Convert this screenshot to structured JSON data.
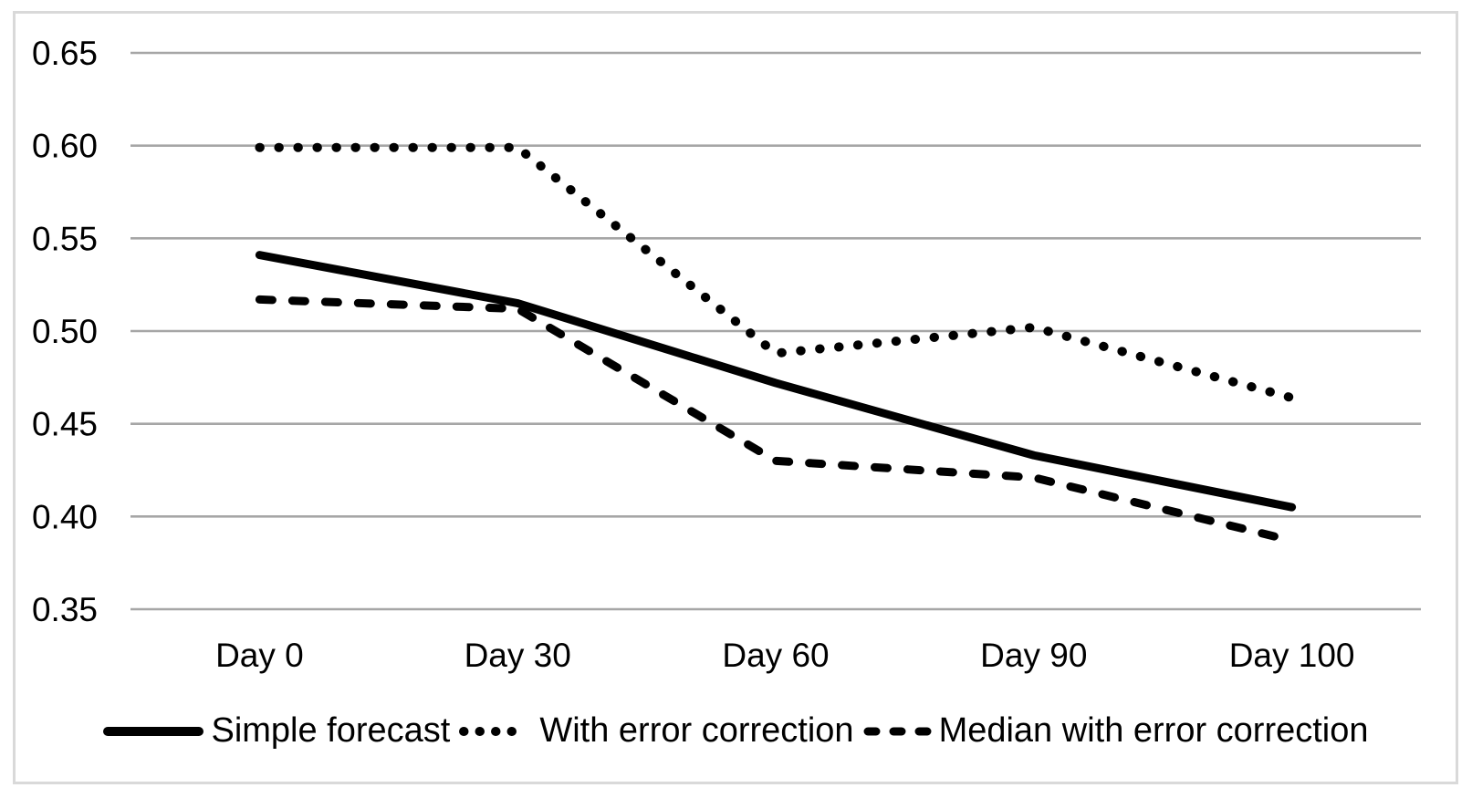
{
  "figure": {
    "background_color": "#ffffff",
    "border_color": "#d9d9d9"
  },
  "chart_data": {
    "type": "line",
    "title": "",
    "xlabel": "",
    "ylabel": "",
    "categories": [
      "Day 0",
      "Day 30",
      "Day 60",
      "Day 90",
      "Day 100"
    ],
    "series": [
      {
        "name": "Simple forecast",
        "style": "solid",
        "color": "#000000",
        "values": [
          0.541,
          0.515,
          0.472,
          0.433,
          0.405
        ]
      },
      {
        "name": "With error correction",
        "style": "dotted",
        "color": "#000000",
        "values": [
          0.599,
          0.599,
          0.488,
          0.502,
          0.464
        ]
      },
      {
        "name": "Median with error correction",
        "style": "dashed",
        "color": "#000000",
        "values": [
          0.517,
          0.512,
          0.43,
          0.421,
          0.387
        ]
      }
    ],
    "ylim": [
      0.35,
      0.65
    ],
    "ytick_step": 0.05,
    "yticks": [
      "0.65",
      "0.60",
      "0.55",
      "0.50",
      "0.45",
      "0.40",
      "0.35"
    ],
    "grid": "horizontal",
    "gridline_color": "#a6a6a6",
    "text_color": "#000000",
    "legend_position": "bottom"
  }
}
